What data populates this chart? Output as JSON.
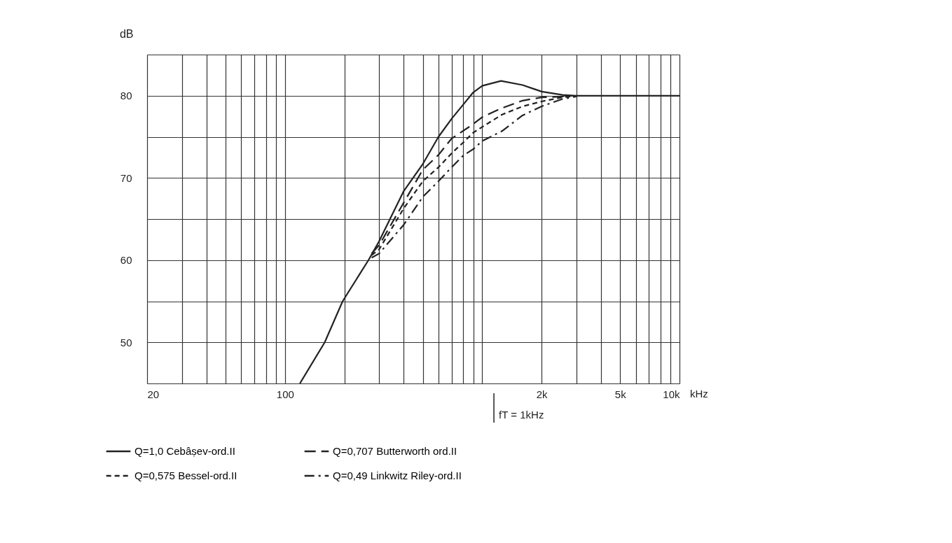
{
  "chart_data": {
    "type": "line",
    "ylabel": "dB",
    "xlim": [
      20,
      10000
    ],
    "ylim": [
      45,
      85
    ],
    "log": "x",
    "grid": true,
    "legend": "bottom",
    "xticks": [
      20,
      {
        "value": 30,
        "label": null
      },
      {
        "value": 40,
        "label": null
      },
      {
        "value": 50,
        "label": null
      },
      {
        "value": 60,
        "label": null
      },
      {
        "value": 70,
        "label": null
      },
      {
        "value": 80,
        "label": null
      },
      {
        "value": 90,
        "label": null
      },
      100,
      {
        "value": 200,
        "label": null
      },
      {
        "value": 300,
        "label": null
      },
      {
        "value": 400,
        "label": null
      },
      {
        "value": 500,
        "label": null
      },
      {
        "value": 600,
        "label": null
      },
      {
        "value": 700,
        "label": null
      },
      {
        "value": 800,
        "label": null
      },
      {
        "value": 900,
        "label": null
      },
      {
        "value": 1000,
        "label": null
      },
      {
        "value": 2000,
        "label": "2k"
      },
      {
        "value": 3000,
        "label": null
      },
      {
        "value": 4000,
        "label": null
      },
      {
        "value": 5000,
        "label": "5k"
      },
      {
        "value": 6000,
        "label": null
      },
      {
        "value": 7000,
        "label": null
      },
      {
        "value": 8000,
        "label": null
      },
      {
        "value": 9000,
        "label": null
      },
      {
        "value": 10000,
        "label": "10k"
      }
    ],
    "xlabel": "kHz",
    "yticks": [
      {
        "value": 45,
        "label": null
      },
      50,
      {
        "value": 55,
        "label": null
      },
      60,
      {
        "value": 65,
        "label": null
      },
      70,
      {
        "value": 75,
        "label": null
      },
      80,
      {
        "value": 85,
        "label": null
      }
    ],
    "annotations": [
      "fT = 1kHz"
    ],
    "series": [
      {
        "name": "Q=1,0 Cebâṣev-ord.II",
        "color": "#222222",
        "line_style": "solid",
        "x": [
          119,
          159,
          196,
          265,
          300,
          400,
          500,
          600,
          700,
          800,
          900,
          1000,
          1245,
          1600,
          2000,
          2550,
          3000,
          5000,
          10000
        ],
        "values": [
          45,
          50,
          55,
          60,
          62.3,
          68.4,
          71.7,
          75,
          77.2,
          78.9,
          80.4,
          81.2,
          81.8,
          81.3,
          80.5,
          80.1,
          80,
          80,
          80
        ]
      },
      {
        "name": "Q=0,575 Bessel-ord.II",
        "color": "#222222",
        "line_style": "dotted",
        "x": [
          275,
          300,
          400,
          500,
          600,
          700,
          800,
          900,
          1000,
          1260,
          1600,
          2000,
          2550,
          2800
        ],
        "values": [
          60.6,
          61.3,
          66.3,
          69.6,
          71.3,
          73,
          74.3,
          75.5,
          76.2,
          77.7,
          78.7,
          79.3,
          79.8,
          79.9
        ]
      },
      {
        "name": "Q=0,707 Butterworth ord.II",
        "color": "#222222",
        "line_style": "dashed",
        "x": [
          275,
          300,
          400,
          500,
          600,
          700,
          870,
          1000,
          1260,
          1600,
          2000,
          2600
        ],
        "values": [
          60.8,
          61.8,
          67,
          71,
          72.8,
          74.8,
          76.3,
          77.4,
          78.5,
          79.4,
          79.8,
          79.9
        ]
      },
      {
        "name": "Q=0,49 Linkwitz Riley-ord.II",
        "color": "#222222",
        "line_style": "dashdot",
        "x": [
          275,
          300,
          400,
          500,
          600,
          700,
          800,
          900,
          1000,
          1260,
          1600,
          2000,
          2550,
          3000
        ],
        "values": [
          60.3,
          60.8,
          64.3,
          67.7,
          69.6,
          71.3,
          72.7,
          73.5,
          74.5,
          75.7,
          77.6,
          78.7,
          79.6,
          79.9
        ]
      }
    ]
  }
}
